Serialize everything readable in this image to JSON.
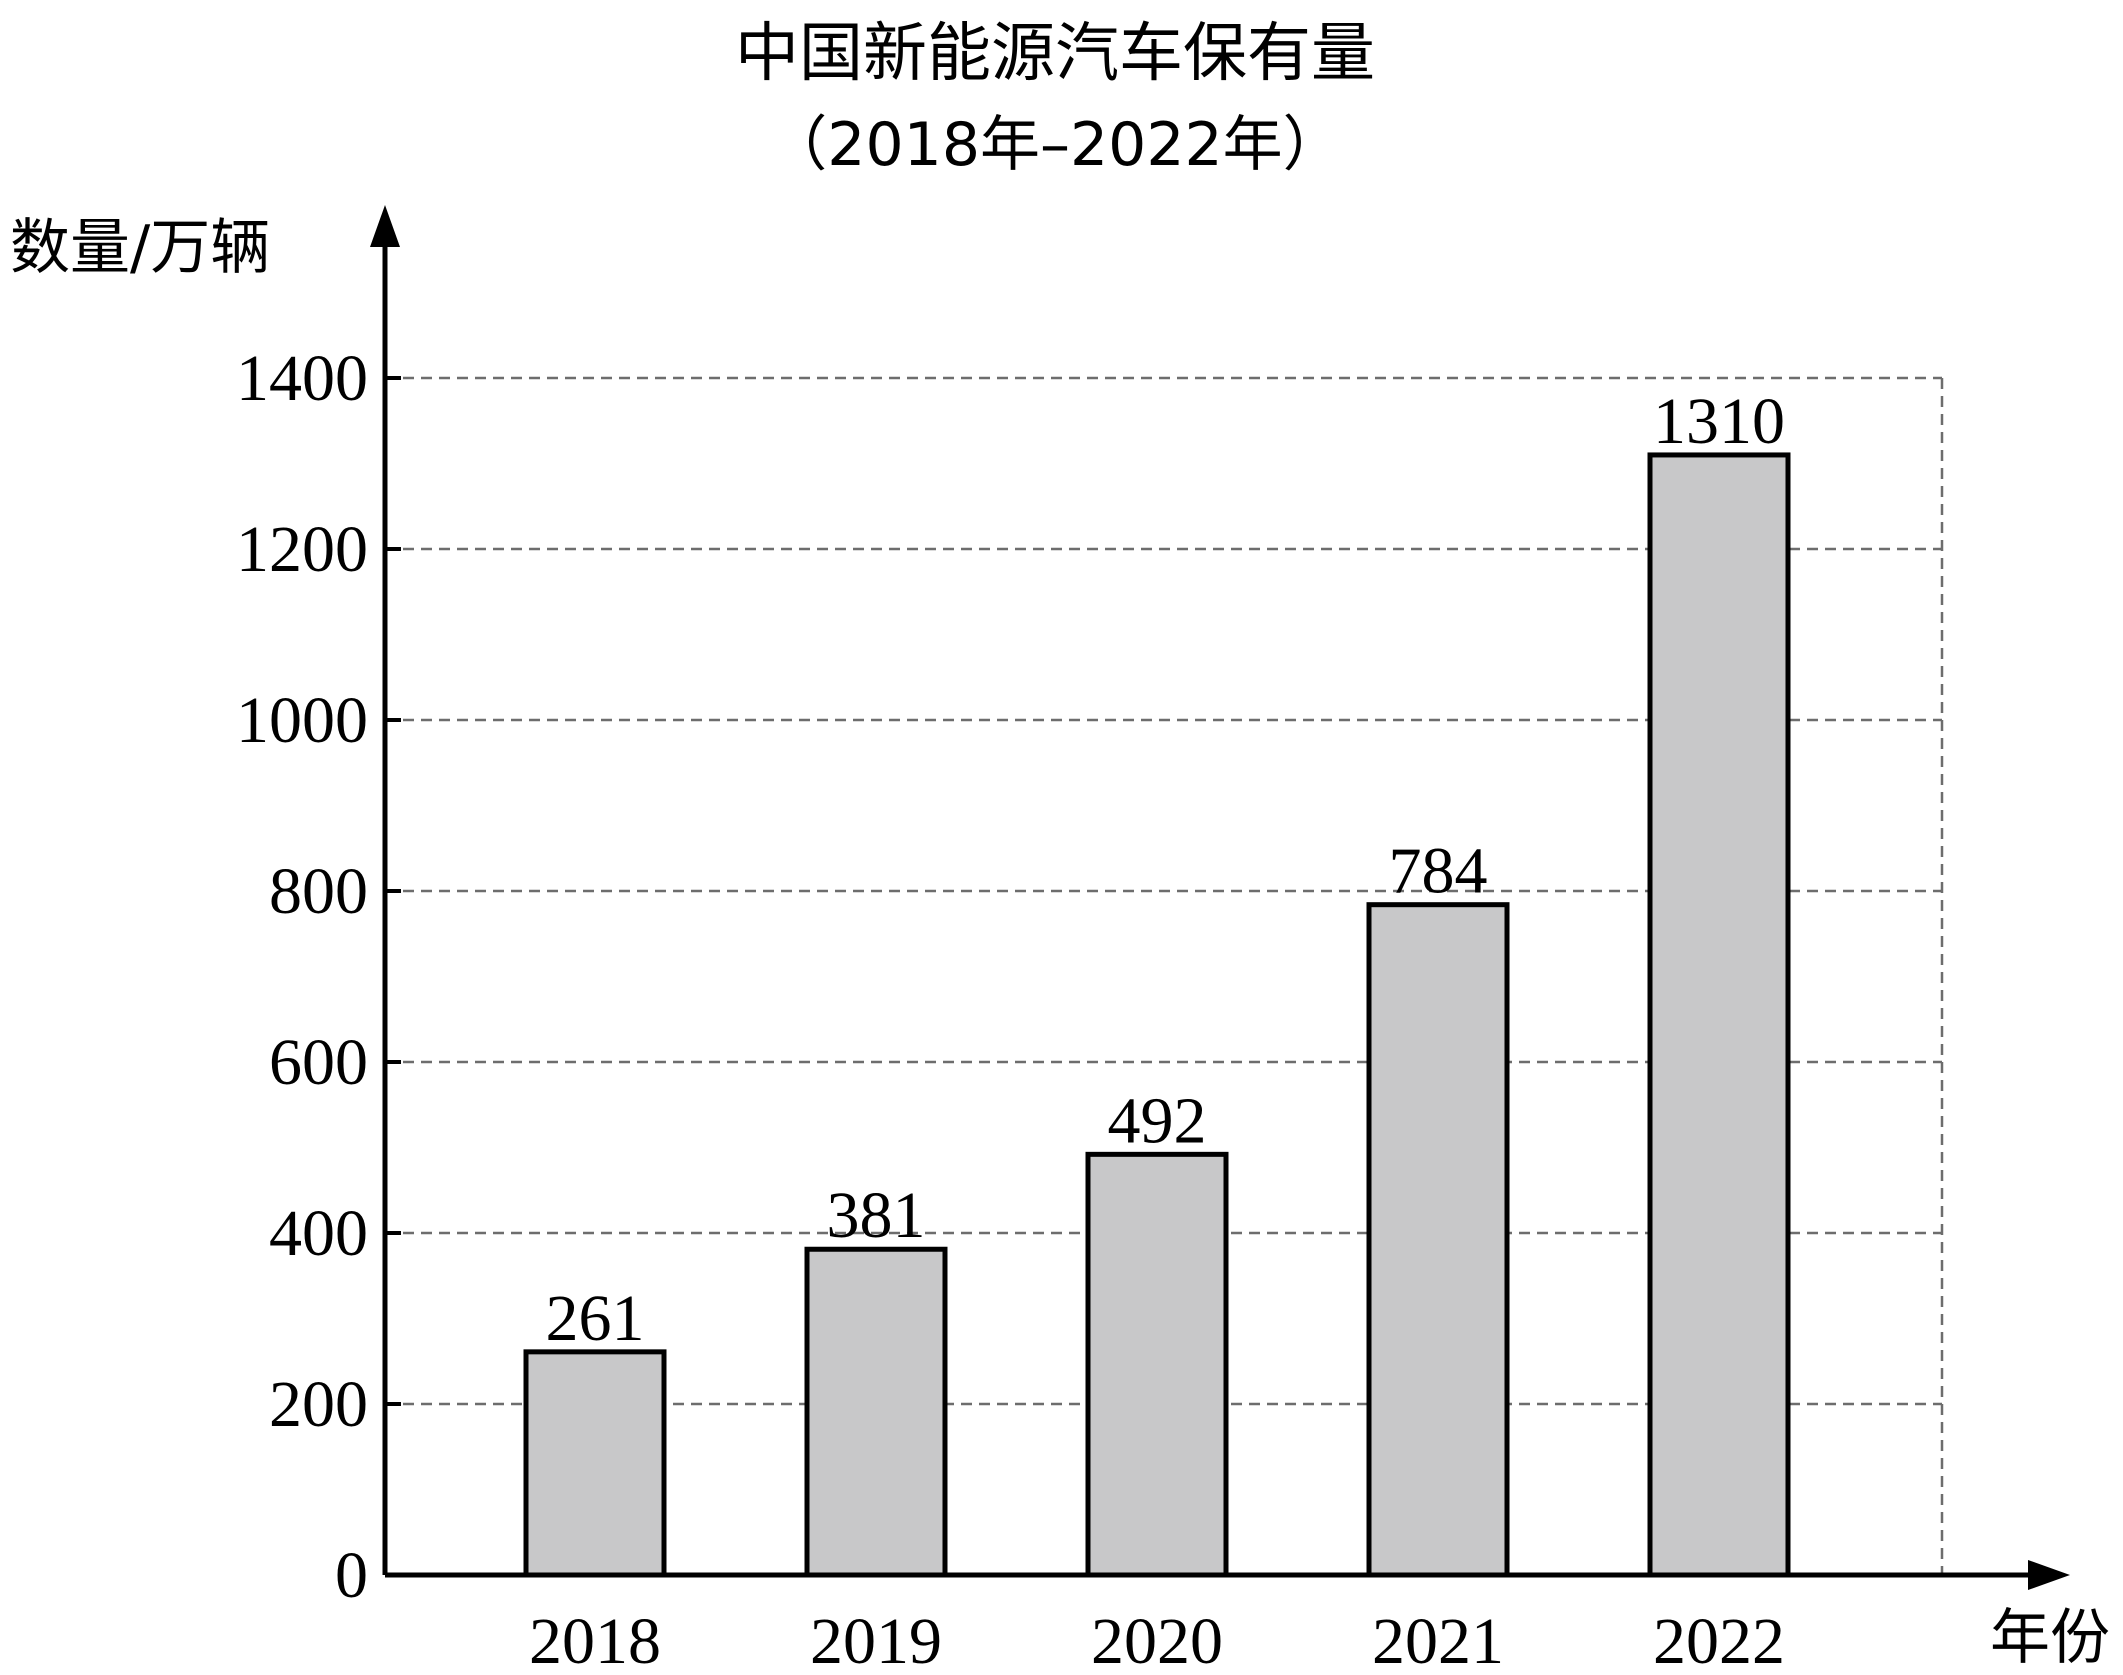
{
  "chart_data": {
    "type": "bar",
    "title": "中国新能源汽车保有量",
    "subtitle": "（2018年–2022年）",
    "ylabel": "数量/万辆",
    "xlabel": "年份",
    "categories": [
      "2018",
      "2019",
      "2020",
      "2021",
      "2022"
    ],
    "values": [
      261,
      381,
      492,
      784,
      1310
    ],
    "data_labels": [
      "261",
      "381",
      "492",
      "784",
      "1310"
    ],
    "ylim": [
      0,
      1400
    ],
    "yticks": [
      0,
      200,
      400,
      600,
      800,
      1000,
      1200,
      1400
    ],
    "ytick_labels": [
      "0",
      "200",
      "400",
      "600",
      "800",
      "1000",
      "1200",
      "1400"
    ],
    "grid": "dashed horizontal",
    "bar_fill": "#c8c8c9",
    "bar_stroke": "#000000",
    "grid_color": "#6d6d6d"
  }
}
